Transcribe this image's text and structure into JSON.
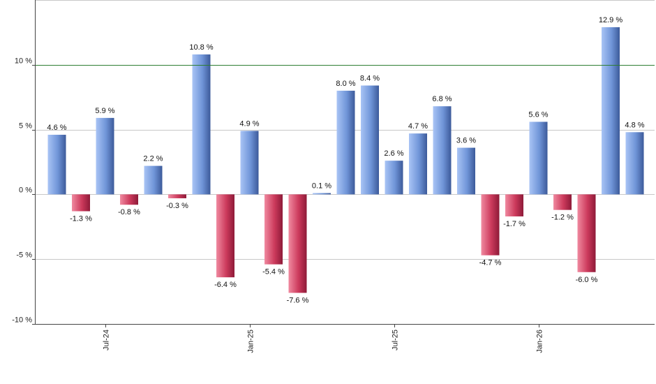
{
  "chart_data": {
    "type": "bar",
    "title": "",
    "xlabel": "",
    "ylabel": "",
    "ylim": [
      -10,
      15
    ],
    "y_ticks": [
      {
        "value": -10,
        "label": "-10 %"
      },
      {
        "value": -5,
        "label": "-5 %"
      },
      {
        "value": 0,
        "label": "0 %"
      },
      {
        "value": 5,
        "label": "5 %"
      },
      {
        "value": 10,
        "label": "10 %"
      }
    ],
    "x_ticks": [
      {
        "index": 2,
        "label": "Jul-24"
      },
      {
        "index": 8,
        "label": "Jan-25"
      },
      {
        "index": 14,
        "label": "Jul-25"
      },
      {
        "index": 20,
        "label": "Jan-26"
      }
    ],
    "reference_line": 10,
    "grid": true,
    "values": [
      4.6,
      -1.3,
      5.9,
      -0.8,
      2.2,
      -0.3,
      10.8,
      -6.4,
      4.9,
      -5.4,
      -7.6,
      0.1,
      8.0,
      8.4,
      2.6,
      4.7,
      6.8,
      3.6,
      -4.7,
      -1.7,
      5.6,
      -1.2,
      -6.0,
      12.9,
      4.8
    ],
    "value_labels": [
      "4.6 %",
      "-1.3 %",
      "5.9 %",
      "-0.8 %",
      "2.2 %",
      "-0.3 %",
      "10.8 %",
      "-6.4 %",
      "4.9 %",
      "-5.4 %",
      "-7.6 %",
      "0.1 %",
      "8.0 %",
      "8.4 %",
      "2.6 %",
      "4.7 %",
      "6.8 %",
      "3.6 %",
      "-4.7 %",
      "-1.7 %",
      "5.6 %",
      "-1.2 %",
      "-6.0 %",
      "12.9 %",
      "4.8 %"
    ],
    "colors": {
      "positive_light": "#a9c4f5",
      "positive_dark": "#3c5a9a",
      "negative_light": "#f08aa0",
      "negative_dark": "#8e1a38",
      "reference_line": "#2e7d32"
    }
  }
}
